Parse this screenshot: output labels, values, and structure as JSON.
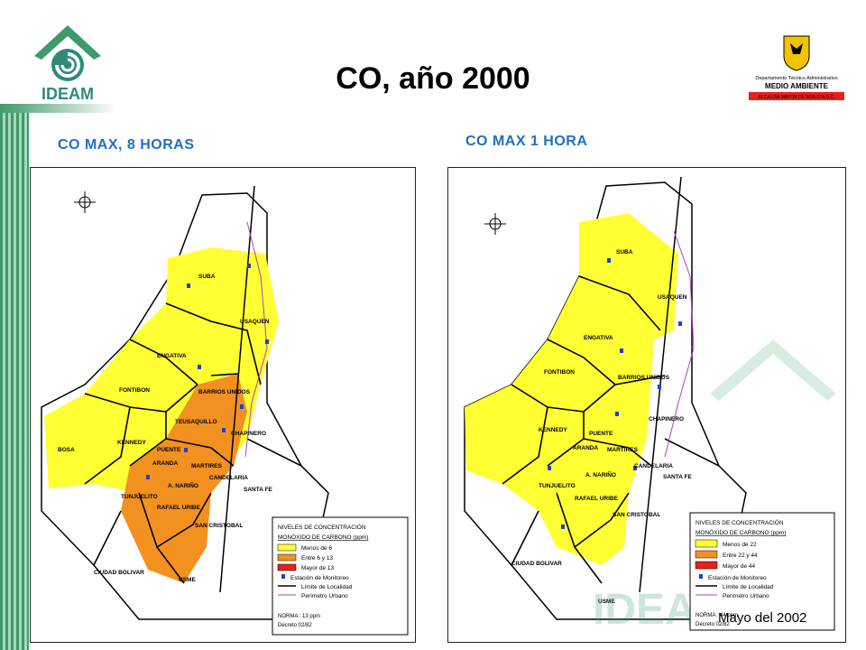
{
  "title": "CO, año 2000",
  "logos": {
    "ideam": "IDEAM",
    "sda_line1": "Departamento Técnico Administrativo",
    "sda_line2": "MEDIO AMBIENTE",
    "sda_line3": "ALCALDIA MAYOR DE BOGOTA D.C."
  },
  "colors": {
    "low": "#ffff33",
    "mid": "#f29120",
    "high": "#e8201a",
    "accent": "#1f6fc4",
    "stripe": "#3f9a6a"
  },
  "map_left": {
    "subtitle": "CO MAX, 8 HORAS",
    "localities": [
      "SUBA",
      "USAQUEN",
      "ENGATIVA",
      "FONTIBON",
      "BARRIOS UNIDOS",
      "TEUSAQUILLO",
      "CHAPINERO",
      "KENNEDY",
      "PUENTE",
      "ARANDA",
      "BOSA",
      "MARTIRES",
      "CANDELARIA",
      "SANTA FE",
      "A. NARIÑO",
      "TUNJUELITO",
      "RAFAEL URIBE",
      "SAN CRISTOBAL",
      "CIUDAD BOLIVAR",
      "USME"
    ],
    "legend": {
      "heading1": "NIVELES DE CONCENTRACIÓN",
      "heading2": "MONÓXIDO DE CARBONO (ppm)",
      "items": [
        "Menos de 6",
        "Entre 6 y 13",
        "Mayor de 13"
      ],
      "station": "Estación de Monitoreo",
      "boundary": "Límite de Localidad",
      "perimeter": "Perímetro Urbano",
      "norma": "NORMA : 13 ppm",
      "decreto": "Decreto 02/82"
    }
  },
  "map_right": {
    "subtitle": "CO MAX 1 HORA",
    "localities": [
      "SUBA",
      "USAQUEN",
      "ENGATIVA",
      "FONTIBON",
      "BARRIOS UNIDOS",
      "CHAPINERO",
      "KENNEDY",
      "PUENTE",
      "ARANDA",
      "MARTIRES",
      "CANDELARIA",
      "SANTA FE",
      "A. NARIÑO",
      "TUNJUELITO",
      "RAFAEL URIBE",
      "SAN CRISTOBAL",
      "CIUDAD BOLIVAR",
      "USME"
    ],
    "legend": {
      "heading1": "NIVELES DE CONCENTRACIÓN",
      "heading2": "MONÓXIDO DE CARBONO (ppm)",
      "items": [
        "Menos de 22",
        "Entre 22 y 44",
        "Mayor de 44"
      ],
      "station": "Estación de Monitoreo",
      "boundary": "Límite de Localidad",
      "perimeter": "Perímetro Urbano",
      "norma": "NORMA : 44 ppm",
      "decreto": "Decreto 02/82"
    }
  },
  "date": "Mayo del 2002"
}
